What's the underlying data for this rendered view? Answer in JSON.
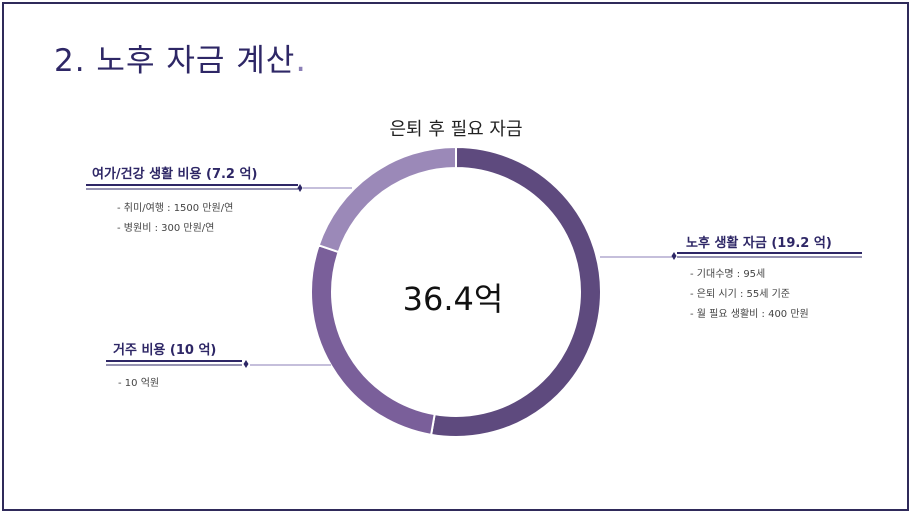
{
  "page": {
    "title": "2. 노후 자금 계산",
    "title_dot": "."
  },
  "chart_data": {
    "type": "pie",
    "variant": "donut",
    "title": "은퇴 후 필요 자금",
    "center_label": "36.4억",
    "categories": [
      "노후 생활 자금",
      "거주 비용",
      "여가/건강 생활 비용"
    ],
    "values": [
      19.2,
      10,
      7.2
    ],
    "unit": "억",
    "colors": [
      "#5e4a7e",
      "#7a5f9a",
      "#9b89b8"
    ],
    "slice_labels": [
      {
        "title": "노후 생활 자금 (19.2 억)",
        "bullets": [
          "기대수명 : 95세",
          "은퇴 시기 : 55세 기준",
          "월 필요 생활비 : 400 만원"
        ]
      },
      {
        "title": "거주 비용 (10 억)",
        "bullets": [
          "10 억원"
        ]
      },
      {
        "title": "여가/건강 생활 비용 (7.2 억)",
        "bullets": [
          "취미/여행 : 1500 만원/연",
          "병원비 : 300 만원/연"
        ]
      }
    ],
    "legend": "none"
  }
}
